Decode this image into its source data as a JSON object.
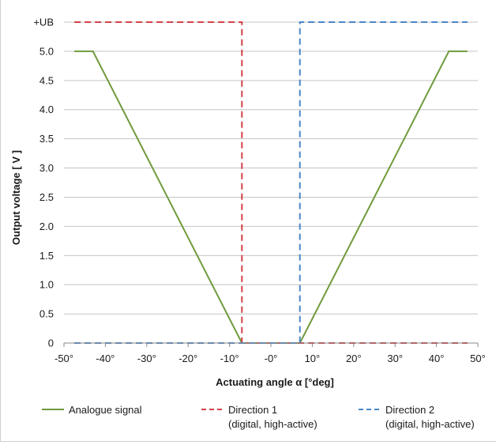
{
  "chart_data": {
    "type": "line",
    "xlabel": "Actuating angle α [°deg]",
    "ylabel": "Output voltage [ V ]",
    "x_ticks": [
      "-50°",
      "-40°",
      "-30°",
      "-20°",
      "-10°",
      "-0°",
      "10°",
      "20°",
      "30°",
      "40°",
      "50°"
    ],
    "y_ticks": [
      "0",
      "0.5",
      "1.0",
      "1.5",
      "2.0",
      "2.5",
      "3.0",
      "3.5",
      "4.0",
      "4.5",
      "5.0",
      "+UB"
    ],
    "xlim": [
      -50,
      50
    ],
    "ylim": [
      0,
      5.5
    ],
    "grid": "horizontal",
    "legend_position": "bottom",
    "series": [
      {
        "name": "Analogue signal",
        "style": "solid",
        "color": "#6f9a3c",
        "x": [
          -47.5,
          -43,
          -7,
          7,
          43,
          47.5
        ],
        "y": [
          5.0,
          5.0,
          0,
          0,
          5.0,
          5.0
        ]
      },
      {
        "name": "Direction 1",
        "name_line2": "(digital, high-active)",
        "style": "dashed",
        "color": "#d2424a",
        "x": [
          -47.5,
          -7,
          -7,
          47.5
        ],
        "y": [
          5.5,
          5.5,
          0,
          0
        ]
      },
      {
        "name": "Direction 2",
        "name_line2": "(digital, high-active)",
        "style": "dashed",
        "color": "#4a86c8",
        "x": [
          -47.5,
          7,
          7,
          47.5
        ],
        "y": [
          0,
          0,
          5.5,
          5.5
        ]
      }
    ]
  }
}
